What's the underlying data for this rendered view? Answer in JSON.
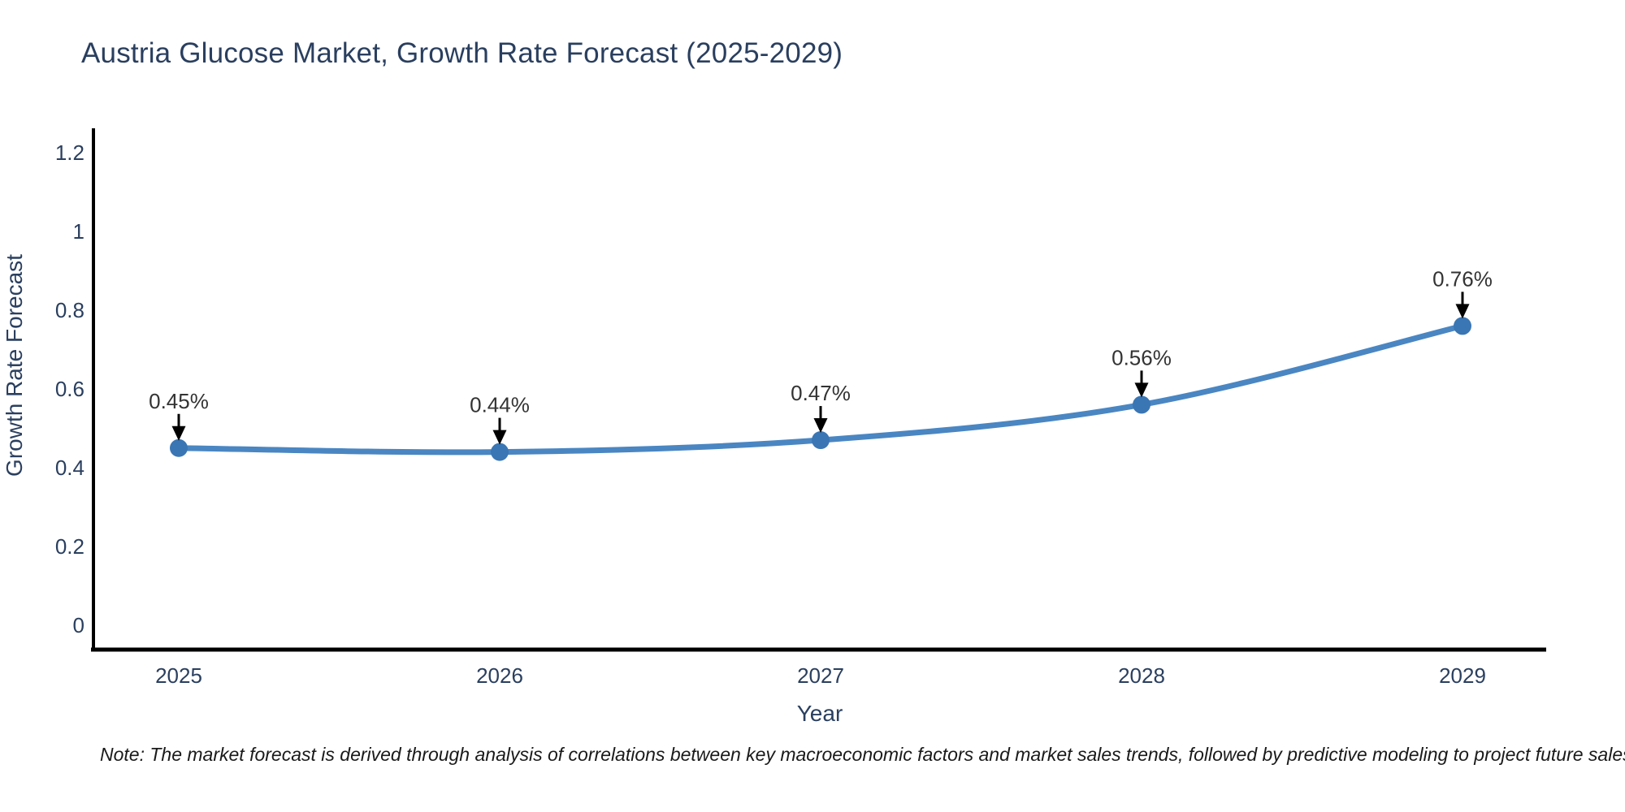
{
  "note": "Note: The market forecast is derived through analysis of correlations between key macroeconomic factors and market sales trends, followed by predictive modeling to project future sales",
  "chart_data": {
    "type": "line",
    "line_shape": "spline",
    "title": "Austria Glucose Market, Growth Rate Forecast (2025-2029)",
    "xlabel": "Year",
    "ylabel": "Growth Rate Forecast",
    "categories": [
      "2025",
      "2026",
      "2027",
      "2028",
      "2029"
    ],
    "values": [
      0.45,
      0.44,
      0.47,
      0.56,
      0.76
    ],
    "point_labels": [
      "0.45%",
      "0.44%",
      "0.47%",
      "0.56%",
      "0.76%"
    ],
    "ytick_labels": [
      "0",
      "0.2",
      "0.4",
      "0.6",
      "0.8",
      "1",
      "1.2"
    ],
    "ytick_values": [
      0,
      0.2,
      0.4,
      0.6,
      0.8,
      1.0,
      1.2
    ],
    "ylim": [
      0,
      1.2
    ],
    "grid": false,
    "legend": false,
    "annotation_style": "arrow-down-to-point",
    "colors": {
      "line": "#4a86c2",
      "marker": "#3a76b4",
      "axis": "#000000",
      "tick_text": "#2a3f5f",
      "annotation_text": "#333333",
      "arrow": "#000000"
    }
  }
}
